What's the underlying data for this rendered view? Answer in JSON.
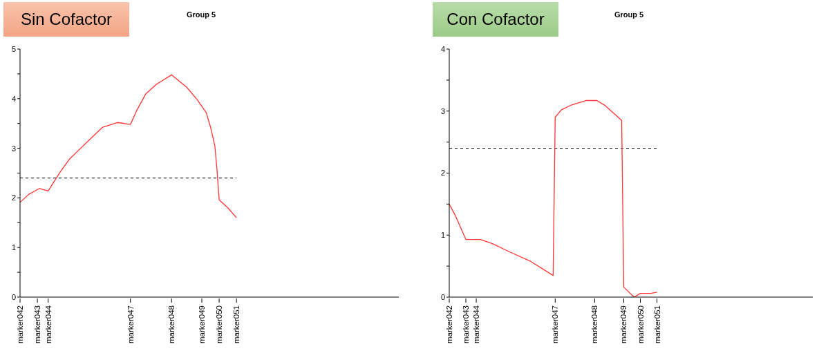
{
  "chart_data": [
    {
      "type": "line",
      "title": "Group 5",
      "subtitle": "Sin Cofactor",
      "categories": [
        "marker042",
        null,
        null,
        null,
        null,
        null,
        null,
        null,
        "marker043",
        null,
        null,
        null,
        null,
        "marker044",
        null,
        null,
        null,
        null,
        null,
        null,
        null,
        null,
        null,
        null,
        null,
        null,
        null,
        null,
        null,
        null,
        null,
        null,
        null,
        null,
        null,
        null,
        null,
        null,
        null,
        null,
        null,
        null,
        null,
        null,
        null,
        null,
        null,
        null,
        null,
        null,
        null,
        "marker047",
        null,
        null,
        null,
        null,
        null,
        null,
        null,
        null,
        null,
        null,
        null,
        null,
        null,
        null,
        null,
        null,
        null,
        null,
        "marker048",
        null,
        null,
        null,
        null,
        null,
        null,
        null,
        null,
        null,
        null,
        null,
        null,
        null,
        "marker049",
        null,
        null,
        null,
        null,
        null,
        null,
        null,
        "marker050",
        null,
        null,
        null,
        null,
        null,
        null,
        null,
        "marker051",
        null,
        null,
        null,
        null,
        null,
        null,
        null,
        null,
        null,
        null,
        null,
        null,
        null,
        null,
        null,
        null,
        null,
        null,
        null,
        null,
        null,
        null,
        null,
        null,
        null,
        null,
        null,
        null,
        null,
        null,
        null,
        null,
        null,
        null,
        null,
        null,
        null,
        null,
        null,
        null,
        null,
        null,
        null,
        null,
        null,
        null,
        null,
        null,
        null,
        null,
        null,
        null,
        null,
        null,
        null,
        null,
        null,
        null,
        null,
        null,
        null,
        null,
        null,
        null,
        null,
        null,
        null,
        null,
        null,
        null,
        null,
        null,
        null,
        null,
        null
      ],
      "ylim": [
        0,
        5
      ],
      "yticks": [
        0,
        {
          "value": 0.5,
          "label": null
        },
        1,
        {
          "value": 1.5,
          "label": null
        },
        2,
        {
          "value": 2.5,
          "label": null
        },
        3,
        {
          "value": 3.5,
          "label": null
        },
        4,
        {
          "value": 4.5,
          "label": null
        },
        5
      ],
      "series": [
        {
          "color": "#ff3333",
          "values": [
            1.91,
            null,
            null,
            null,
            2.07,
            null,
            null,
            null,
            null,
            2.19,
            null,
            null,
            null,
            2.14,
            null,
            2.28,
            null,
            null,
            null,
            2.55,
            null,
            null,
            null,
            2.79,
            null,
            null,
            null,
            null,
            3.0,
            null,
            null,
            null,
            null,
            3.21,
            null,
            null,
            null,
            null,
            3.42,
            null,
            null,
            null,
            null,
            null,
            null,
            3.52,
            null,
            null,
            null,
            null,
            null,
            3.48,
            null,
            null,
            3.77,
            null,
            null,
            null,
            4.09,
            null,
            null,
            null,
            null,
            4.29,
            null,
            null,
            null,
            null,
            null,
            null,
            4.48,
            null,
            null,
            null,
            null,
            null,
            null,
            4.23,
            null,
            null,
            null,
            null,
            3.97,
            null,
            null,
            null,
            3.72,
            null,
            3.43,
            null,
            3.05,
            2.57,
            1.96,
            null,
            null,
            null,
            1.8,
            null,
            null,
            null,
            1.6,
            null,
            null,
            null,
            null,
            null,
            null,
            null,
            null,
            null,
            null,
            null,
            null,
            null,
            null,
            null,
            null,
            null,
            null,
            null,
            null,
            null,
            null,
            null,
            null,
            null,
            null,
            null,
            null,
            null,
            null,
            null,
            null,
            null,
            null,
            null,
            null,
            null,
            null,
            null,
            null,
            null,
            null,
            null,
            null,
            null,
            null,
            null,
            null,
            null,
            null,
            null,
            null,
            null,
            null,
            null,
            null,
            null,
            null,
            null,
            null,
            null,
            null,
            null,
            null,
            null,
            null,
            null,
            null,
            null,
            null,
            null,
            null,
            null,
            null,
            null
          ]
        }
      ],
      "ref_lines": [
        {
          "axis": "y",
          "value": 2.4,
          "label": null,
          "color": "#000000",
          "line_style": "dashed"
        }
      ],
      "grid": false,
      "legend": false,
      "marker": "none",
      "line_style": "solid"
    },
    {
      "type": "line",
      "title": "Group 5",
      "subtitle": "Con Cofactor",
      "categories": [
        "marker042",
        null,
        null,
        null,
        null,
        null,
        null,
        null,
        "marker043",
        null,
        null,
        null,
        null,
        "marker044",
        null,
        null,
        null,
        null,
        null,
        null,
        null,
        null,
        null,
        null,
        null,
        null,
        null,
        null,
        null,
        null,
        null,
        null,
        null,
        null,
        null,
        null,
        null,
        null,
        null,
        null,
        null,
        null,
        null,
        null,
        null,
        null,
        null,
        null,
        null,
        null,
        null,
        "marker047",
        null,
        null,
        null,
        null,
        null,
        null,
        null,
        null,
        null,
        null,
        null,
        null,
        null,
        null,
        null,
        null,
        null,
        null,
        "marker048",
        null,
        null,
        null,
        null,
        null,
        null,
        null,
        null,
        null,
        null,
        null,
        null,
        null,
        "marker049",
        null,
        null,
        null,
        null,
        null,
        null,
        null,
        "marker050",
        null,
        null,
        null,
        null,
        null,
        null,
        null,
        "marker051",
        null,
        null,
        null,
        null,
        null,
        null,
        null,
        null,
        null,
        null,
        null,
        null,
        null,
        null,
        null,
        null,
        null,
        null,
        null,
        null,
        null,
        null,
        null,
        null,
        null,
        null,
        null,
        null,
        null,
        null,
        null,
        null,
        null,
        null,
        null,
        null,
        null,
        null,
        null,
        null,
        null,
        null,
        null,
        null,
        null,
        null,
        null,
        null,
        null,
        null,
        null,
        null,
        null,
        null,
        null,
        null,
        null,
        null,
        null,
        null,
        null,
        null,
        null,
        null,
        null,
        null,
        null,
        null,
        null,
        null,
        null,
        null,
        null,
        null,
        null
      ],
      "ylim": [
        0,
        4
      ],
      "yticks": [
        0,
        {
          "value": 0.5,
          "label": null
        },
        1,
        {
          "value": 1.5,
          "label": null
        },
        2,
        {
          "value": 2.5,
          "label": null
        },
        3,
        {
          "value": 3.5,
          "label": null
        },
        4
      ],
      "series": [
        {
          "color": "#ff3333",
          "values": [
            1.5,
            null,
            null,
            1.31,
            null,
            null,
            null,
            null,
            0.93,
            null,
            null,
            null,
            null,
            null,
            null,
            0.93,
            null,
            null,
            null,
            null,
            null,
            0.86,
            null,
            null,
            null,
            null,
            null,
            null,
            null,
            0.73,
            null,
            null,
            null,
            null,
            null,
            null,
            null,
            null,
            null,
            0.58,
            null,
            null,
            null,
            null,
            null,
            null,
            null,
            null,
            null,
            null,
            0.35,
            2.9,
            null,
            null,
            3.02,
            null,
            null,
            null,
            null,
            3.1,
            null,
            null,
            null,
            null,
            null,
            null,
            3.17,
            null,
            null,
            null,
            null,
            3.17,
            null,
            null,
            null,
            3.09,
            null,
            null,
            null,
            null,
            null,
            null,
            null,
            2.85,
            0.16,
            null,
            null,
            null,
            null,
            0,
            null,
            null,
            0.06,
            null,
            null,
            null,
            null,
            0.06,
            null,
            null,
            0.08,
            null,
            null,
            null,
            null,
            null,
            null,
            null,
            null,
            null,
            null,
            null,
            null,
            null,
            null,
            null,
            null,
            null,
            null,
            null,
            null,
            null,
            null,
            null,
            null,
            null,
            null,
            null,
            null,
            null,
            null,
            null,
            null,
            null,
            null,
            null,
            null,
            null,
            null,
            null,
            null,
            null,
            null,
            null,
            null,
            null,
            null,
            null,
            null,
            null,
            null,
            null,
            null,
            null,
            null,
            null,
            null,
            null,
            null,
            null,
            null,
            null,
            null,
            null,
            null,
            null,
            null,
            null,
            null,
            null,
            null,
            null,
            null,
            null,
            null,
            null
          ]
        }
      ],
      "ref_lines": [
        {
          "axis": "y",
          "value": 2.4,
          "label": null,
          "color": "#000000",
          "line_style": "dashed"
        }
      ],
      "grid": false,
      "legend": false,
      "marker": "none",
      "line_style": "solid"
    }
  ]
}
